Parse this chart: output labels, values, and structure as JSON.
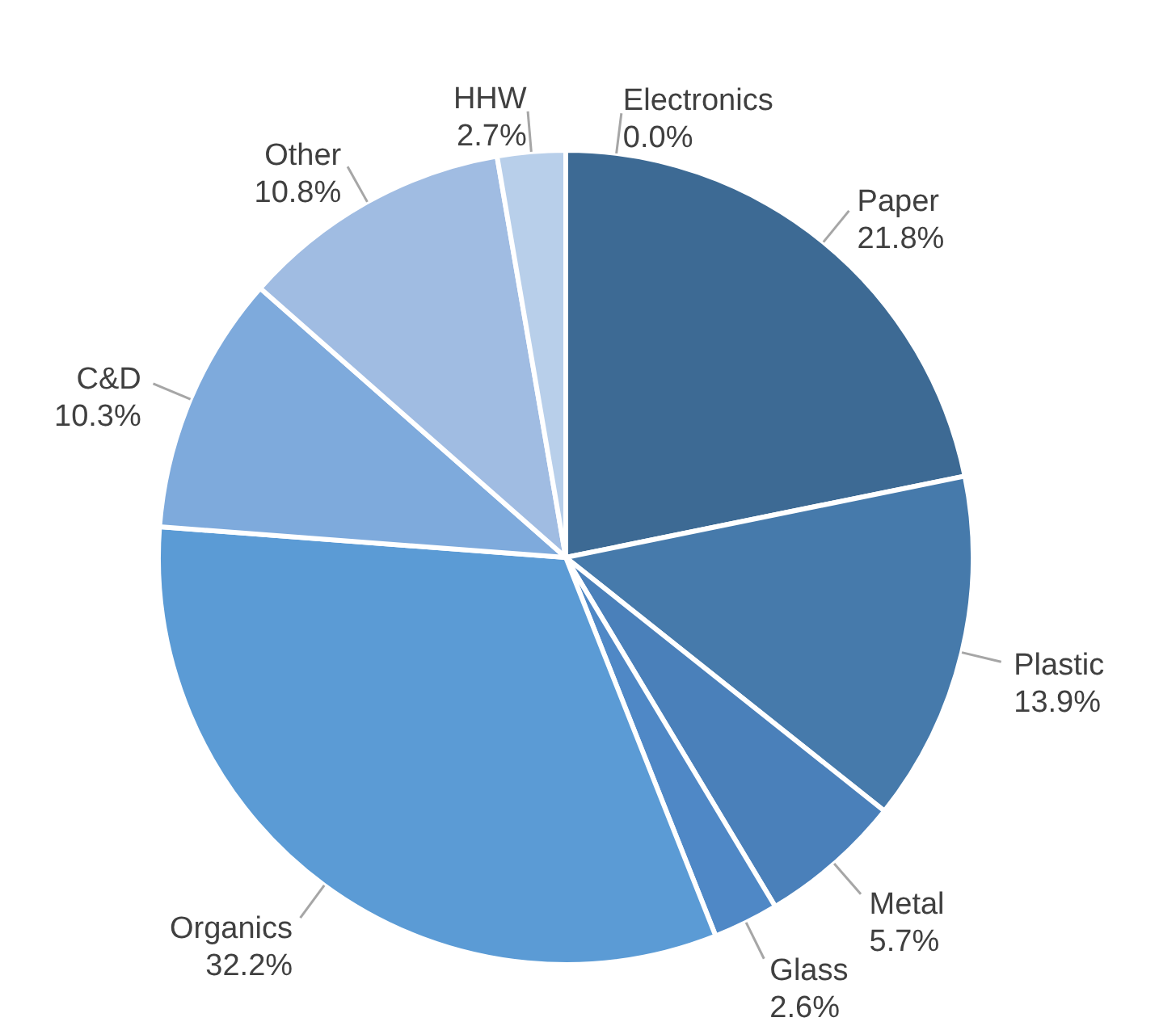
{
  "chart_data": {
    "type": "pie",
    "categories": [
      "Paper",
      "Plastic",
      "Metal",
      "Glass",
      "Organics",
      "C&D",
      "Other",
      "HHW",
      "Electronics"
    ],
    "values": [
      21.8,
      13.9,
      5.7,
      2.6,
      32.2,
      10.3,
      10.8,
      2.7,
      0.0
    ],
    "value_labels": [
      "21.8%",
      "13.9%",
      "5.7%",
      "2.6%",
      "32.2%",
      "10.3%",
      "10.8%",
      "2.7%",
      "0.0%"
    ],
    "colors": [
      "#3d6a94",
      "#467aab",
      "#4a80ba",
      "#4f88c6",
      "#5b9bd5",
      "#7eaadc",
      "#a0bce2",
      "#b8cfea",
      "#c9daef"
    ]
  }
}
